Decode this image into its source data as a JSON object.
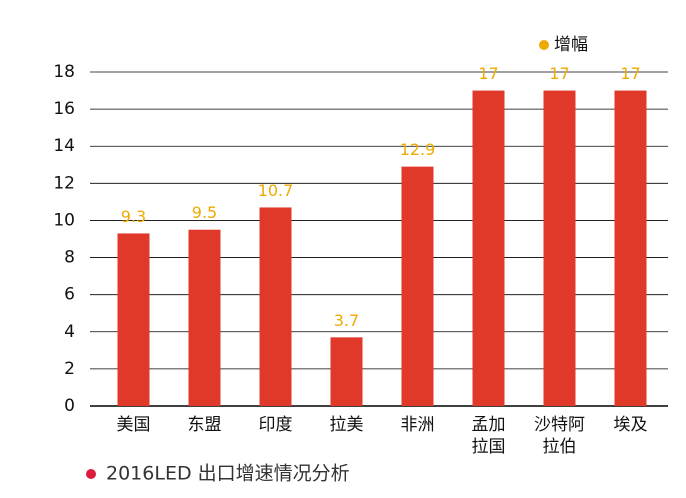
{
  "chart_data": {
    "type": "bar",
    "title": "2016LED 出口增速情况分析",
    "categories": [
      "美国",
      "东盟",
      "印度",
      "拉美",
      "非洲",
      "孟加\n拉国",
      "沙特阿\n拉伯",
      "埃及"
    ],
    "series": [
      {
        "name": "增幅",
        "color": "#e0392a",
        "label_color": "#eeaa00",
        "values": [
          9.3,
          9.5,
          10.7,
          3.7,
          12.9,
          17,
          17,
          17
        ]
      }
    ],
    "ylim": [
      0,
      18
    ],
    "yticks": [
      0,
      2,
      4,
      6,
      8,
      10,
      12,
      14,
      16,
      18
    ],
    "grid": true
  }
}
